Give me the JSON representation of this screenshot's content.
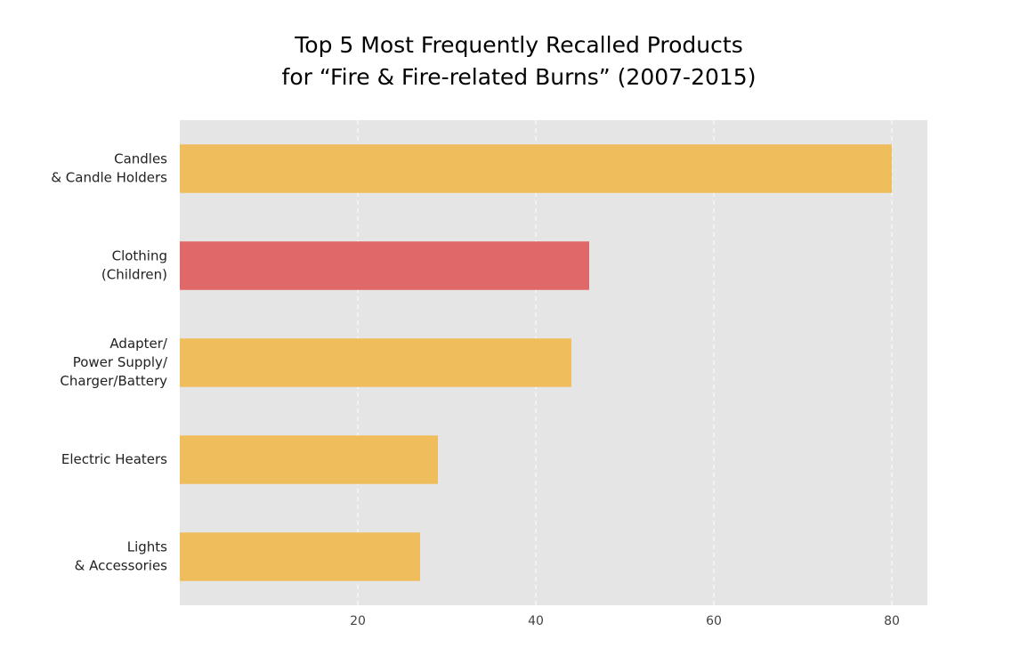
{
  "chart_data": {
    "type": "hbar",
    "title": [
      "Top 5 Most Frequently Recalled Products",
      "for “Fire & Fire-related Burns” (2007-2015)"
    ],
    "categories": [
      [
        "Candles",
        "& Candle Holders"
      ],
      [
        "Clothing",
        "(Children)"
      ],
      [
        "Adapter/",
        "Power Supply/",
        "Charger/Battery"
      ],
      [
        "Electric Heaters"
      ],
      [
        "Lights",
        "& Accessories"
      ]
    ],
    "values": [
      80,
      46,
      44,
      29,
      27
    ],
    "colors": [
      "#f0bd5c",
      "#e06868",
      "#f0bd5c",
      "#f0bd5c",
      "#f0bd5c"
    ],
    "xlim": [
      0,
      84
    ],
    "xticks": [
      20,
      40,
      60,
      80
    ],
    "grid": true
  }
}
